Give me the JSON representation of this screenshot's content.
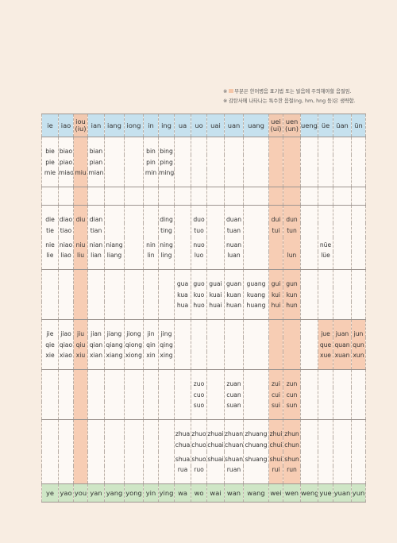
{
  "notes": [
    "부분은 한어병음 표기법 또는 발음에 주의해야할 음절임.",
    "감탄사에 나타나는 특수한 음절(ng, hm, hng 등)은 생략함."
  ],
  "table": {
    "header": [
      [
        "ie"
      ],
      [
        "iao"
      ],
      [
        "iou",
        "(iu)"
      ],
      [
        "ian"
      ],
      [
        "iang"
      ],
      [
        "iong"
      ],
      [
        "in"
      ],
      [
        "ing"
      ],
      [
        "ua"
      ],
      [
        "uo"
      ],
      [
        "uai"
      ],
      [
        "uan"
      ],
      [
        "uang"
      ],
      [
        "uei",
        "(ui)"
      ],
      [
        "uen",
        "(un)"
      ],
      [
        "ueng"
      ],
      [
        "üe"
      ],
      [
        "üan"
      ],
      [
        "ün"
      ]
    ],
    "groups": [
      [
        [
          "bie",
          "biao",
          null,
          "bian",
          null,
          null,
          "bin",
          "bing",
          null,
          null,
          null,
          null,
          null,
          null,
          null,
          null,
          null,
          null,
          null
        ],
        [
          "pie",
          "piao",
          null,
          "pian",
          null,
          null,
          "pin",
          "ping",
          null,
          null,
          null,
          null,
          null,
          null,
          null,
          null,
          null,
          null,
          null
        ],
        [
          "mie",
          "miao",
          "miu",
          "mian",
          null,
          null,
          "min",
          "ming",
          null,
          null,
          null,
          null,
          null,
          null,
          null,
          null,
          null,
          null,
          null
        ]
      ],
      [
        [
          null,
          null,
          null,
          null,
          null,
          null,
          null,
          null,
          null,
          null,
          null,
          null,
          null,
          null,
          null,
          null,
          null,
          null,
          null
        ]
      ],
      [
        [
          "die",
          "diao",
          "diu",
          "dian",
          null,
          null,
          null,
          "ding",
          null,
          "duo",
          null,
          "duan",
          null,
          "dui",
          "dun",
          null,
          null,
          null,
          null
        ],
        [
          "tie",
          "tiao",
          null,
          "tian",
          null,
          null,
          null,
          "ting",
          null,
          "tuo",
          null,
          "tuan",
          null,
          "tui",
          "tun",
          null,
          null,
          null,
          null
        ],
        [
          "nie",
          "niao",
          "niu",
          "nian",
          "niang",
          null,
          "nin",
          "ning",
          null,
          "nuo",
          null,
          "nuan",
          null,
          null,
          null,
          null,
          "nüe",
          null,
          null
        ],
        [
          "lie",
          "liao",
          "liu",
          "lian",
          "liang",
          null,
          "lin",
          "ling",
          null,
          "luo",
          null,
          "luan",
          null,
          null,
          "lun",
          null,
          "lüe",
          null,
          null
        ]
      ],
      [
        [
          null,
          null,
          null,
          null,
          null,
          null,
          null,
          null,
          "gua",
          "guo",
          "guai",
          "guan",
          "guang",
          "gui",
          "gun",
          null,
          null,
          null,
          null
        ],
        [
          null,
          null,
          null,
          null,
          null,
          null,
          null,
          null,
          "kua",
          "kuo",
          "kuai",
          "kuan",
          "kuang",
          "kui",
          "kun",
          null,
          null,
          null,
          null
        ],
        [
          null,
          null,
          null,
          null,
          null,
          null,
          null,
          null,
          "hua",
          "huo",
          "huai",
          "huan",
          "huang",
          "hui",
          "hun",
          null,
          null,
          null,
          null
        ]
      ],
      [
        [
          "jie",
          "jiao",
          "jiu",
          "jian",
          "jiang",
          "jiong",
          "jin",
          "jing",
          null,
          null,
          null,
          null,
          null,
          null,
          null,
          null,
          "jue",
          "juan",
          "jun"
        ],
        [
          "qie",
          "qiao",
          "qiu",
          "qian",
          "qiang",
          "qiong",
          "qin",
          "qing",
          null,
          null,
          null,
          null,
          null,
          null,
          null,
          null,
          "que",
          "quan",
          "qun"
        ],
        [
          "xie",
          "xiao",
          "xiu",
          "xian",
          "xiang",
          "xiong",
          "xin",
          "xing",
          null,
          null,
          null,
          null,
          null,
          null,
          null,
          null,
          "xue",
          "xuan",
          "xun"
        ]
      ],
      [
        [
          null,
          null,
          null,
          null,
          null,
          null,
          null,
          null,
          null,
          "zuo",
          null,
          "zuan",
          null,
          "zui",
          "zun",
          null,
          null,
          null,
          null
        ],
        [
          null,
          null,
          null,
          null,
          null,
          null,
          null,
          null,
          null,
          "cuo",
          null,
          "cuan",
          null,
          "cui",
          "cun",
          null,
          null,
          null,
          null
        ],
        [
          null,
          null,
          null,
          null,
          null,
          null,
          null,
          null,
          null,
          "suo",
          null,
          "suan",
          null,
          "sui",
          "sun",
          null,
          null,
          null,
          null
        ]
      ],
      [
        [
          null,
          null,
          null,
          null,
          null,
          null,
          null,
          null,
          "zhua",
          "zhuo",
          "zhuai",
          "zhuan",
          "zhuang",
          "zhui",
          "zhun",
          null,
          null,
          null,
          null
        ],
        [
          null,
          null,
          null,
          null,
          null,
          null,
          null,
          null,
          "chua",
          "chuo",
          "chuai",
          "chuan",
          "chuang",
          "chui",
          "chun",
          null,
          null,
          null,
          null
        ],
        [
          null,
          null,
          null,
          null,
          null,
          null,
          null,
          null,
          "shua",
          "shuo",
          "shuai",
          "shuan",
          "shuang",
          "shui",
          "shun",
          null,
          null,
          null,
          null
        ],
        [
          null,
          null,
          null,
          null,
          null,
          null,
          null,
          null,
          "rua",
          "ruo",
          null,
          "ruan",
          null,
          "rui",
          "run",
          null,
          null,
          null,
          null
        ]
      ]
    ],
    "footer": [
      "ye",
      "yao",
      "you",
      "yan",
      "yang",
      "yong",
      "yin",
      "ying",
      "wa",
      "wo",
      "wai",
      "wan",
      "wang",
      "wei",
      "wen",
      "weng",
      "yue",
      "yuan",
      "yun"
    ]
  }
}
